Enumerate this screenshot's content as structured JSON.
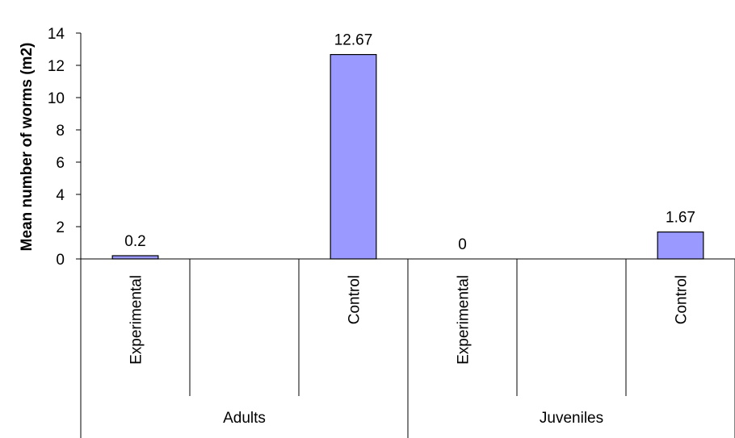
{
  "chart_data": {
    "type": "bar",
    "ylabel": "Mean number of worms (m2)",
    "ylim": [
      0,
      14
    ],
    "yticks": [
      "0",
      "2",
      "4",
      "6",
      "8",
      "10",
      "12",
      "14"
    ],
    "grid": false,
    "legend": "none",
    "groups": [
      {
        "name": "Adults",
        "categories": [
          "Experimental",
          "",
          "Control"
        ],
        "values": [
          0.2,
          null,
          12.67
        ],
        "labels": [
          "0.2",
          "",
          "12.67"
        ]
      },
      {
        "name": "Juveniles",
        "categories": [
          "Experimental",
          "",
          "Control"
        ],
        "values": [
          0,
          null,
          1.67
        ],
        "labels": [
          "0",
          "",
          "1.67"
        ]
      }
    ],
    "colors": {
      "bar_fill": "#9999ff",
      "bar_stroke": "#000000",
      "axis": "#000000"
    }
  }
}
